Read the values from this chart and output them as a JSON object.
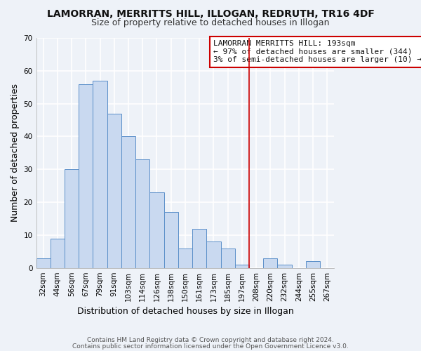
{
  "title": "LAMORRAN, MERRITTS HILL, ILLOGAN, REDRUTH, TR16 4DF",
  "subtitle": "Size of property relative to detached houses in Illogan",
  "xlabel": "Distribution of detached houses by size in Illogan",
  "ylabel": "Number of detached properties",
  "bar_labels": [
    "32sqm",
    "44sqm",
    "56sqm",
    "67sqm",
    "79sqm",
    "91sqm",
    "103sqm",
    "114sqm",
    "126sqm",
    "138sqm",
    "150sqm",
    "161sqm",
    "173sqm",
    "185sqm",
    "197sqm",
    "208sqm",
    "220sqm",
    "232sqm",
    "244sqm",
    "255sqm",
    "267sqm"
  ],
  "bar_values": [
    3,
    9,
    30,
    56,
    57,
    47,
    40,
    33,
    23,
    17,
    6,
    12,
    8,
    6,
    1,
    0,
    3,
    1,
    0,
    2,
    0
  ],
  "bar_color": "#c9d9f0",
  "bar_edge_color": "#5b8fc9",
  "ylim": [
    0,
    70
  ],
  "yticks": [
    0,
    10,
    20,
    30,
    40,
    50,
    60,
    70
  ],
  "vline_x_index": 14,
  "vline_color": "#cc0000",
  "annotation_title": "LAMORRAN MERRITTS HILL: 193sqm",
  "annotation_line1": "← 97% of detached houses are smaller (344)",
  "annotation_line2": "3% of semi-detached houses are larger (10) →",
  "annotation_box_color": "#cc0000",
  "footer1": "Contains HM Land Registry data © Crown copyright and database right 2024.",
  "footer2": "Contains public sector information licensed under the Open Government Licence v3.0.",
  "background_color": "#eef2f8",
  "grid_color": "#d0d8e8",
  "title_fontsize": 10,
  "subtitle_fontsize": 9,
  "axis_label_fontsize": 9,
  "tick_fontsize": 7.5,
  "footer_fontsize": 6.5,
  "annotation_fontsize": 8
}
